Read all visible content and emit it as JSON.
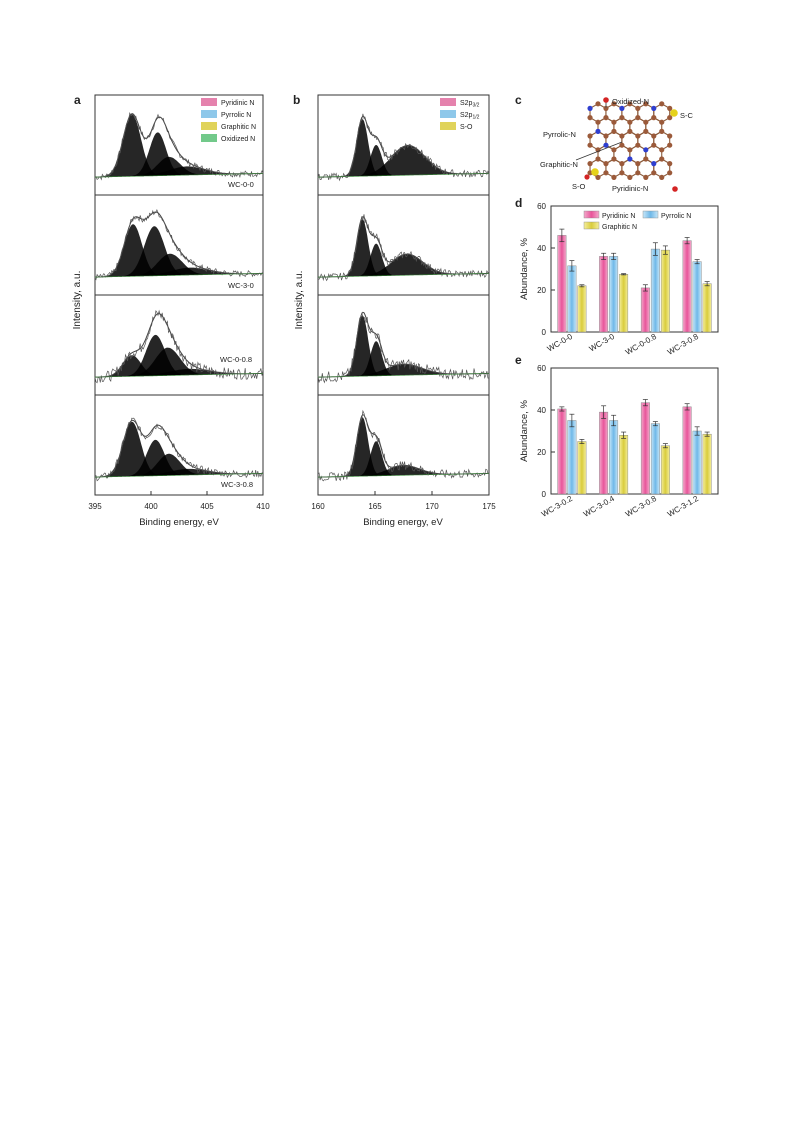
{
  "panel_labels": {
    "a": "a",
    "b": "b",
    "c": "c",
    "d": "d",
    "e": "e"
  },
  "colors": {
    "pink": "#e582ad",
    "blue": "#8ec8ea",
    "yellow": "#e0d35a",
    "green": "#72c98a",
    "atom_c": "#9b5a3a",
    "atom_n": "#2f3fcf",
    "atom_o": "#d42424",
    "atom_s": "#e6d21a"
  },
  "panel_a": {
    "ylabel": "Intensity, a.u.",
    "xlabel": "Binding energy, eV",
    "xticks": [
      "395",
      "400",
      "405",
      "410"
    ],
    "legend": [
      "Pyridinic N",
      "Pyrrolic N",
      "Graphitic N",
      "Oxidized N"
    ],
    "samples": [
      "WC-0-0",
      "WC-3-0",
      "WC-0-0.8",
      "WC-3-0.8"
    ]
  },
  "panel_b": {
    "ylabel": "Intensity, a.u.",
    "xlabel": "Binding energy, eV",
    "xticks": [
      "160",
      "165",
      "170",
      "175"
    ],
    "legend": [
      "S2p3/2",
      "S2p1/2",
      "S-O"
    ]
  },
  "panel_c": {
    "labels": {
      "oxidized": "Oxidized-N",
      "sc": "S-C",
      "pyrrolic": "Pyrrolic-N",
      "graphitic": "Graphitic-N",
      "so": "S-O",
      "pyridinic": "Pyridinic-N"
    }
  },
  "chart_data": [
    {
      "panel": "d",
      "type": "bar",
      "ylabel": "Abundance, %",
      "ylim": [
        0,
        60
      ],
      "yticks": [
        "0",
        "20",
        "40",
        "60"
      ],
      "categories": [
        "WC-0-0",
        "WC-3-0",
        "WC-0-0.8",
        "WC-3-0.8"
      ],
      "legend_position": "top",
      "series": [
        {
          "name": "Pyridinic N",
          "values": [
            46,
            36,
            21,
            43.5
          ],
          "errors": [
            3,
            1.5,
            1.5,
            1.5
          ]
        },
        {
          "name": "Pyrrolic N",
          "values": [
            31.5,
            36,
            39.5,
            33.5
          ],
          "errors": [
            2.5,
            1.5,
            3,
            1
          ]
        },
        {
          "name": "Graphitic N",
          "values": [
            22,
            27.5,
            39,
            23
          ],
          "errors": [
            0.5,
            0.3,
            2,
            1
          ]
        }
      ]
    },
    {
      "panel": "e",
      "type": "bar",
      "ylabel": "Abundance, %",
      "ylim": [
        0,
        60
      ],
      "yticks": [
        "0",
        "20",
        "40",
        "60"
      ],
      "categories": [
        "WC-3-0.2",
        "WC-3-0.4",
        "WC-3-0.8",
        "WC-3-1.2"
      ],
      "series": [
        {
          "name": "Pyridinic N",
          "values": [
            40.5,
            39,
            43.5,
            41.5
          ],
          "errors": [
            1,
            3,
            1.5,
            1.5
          ]
        },
        {
          "name": "Pyrrolic N",
          "values": [
            35,
            35,
            33.5,
            30
          ],
          "errors": [
            3,
            2.5,
            1,
            2
          ]
        },
        {
          "name": "Graphitic N",
          "values": [
            25,
            28,
            23,
            28.5
          ],
          "errors": [
            1,
            1.5,
            1,
            1
          ]
        }
      ]
    }
  ]
}
